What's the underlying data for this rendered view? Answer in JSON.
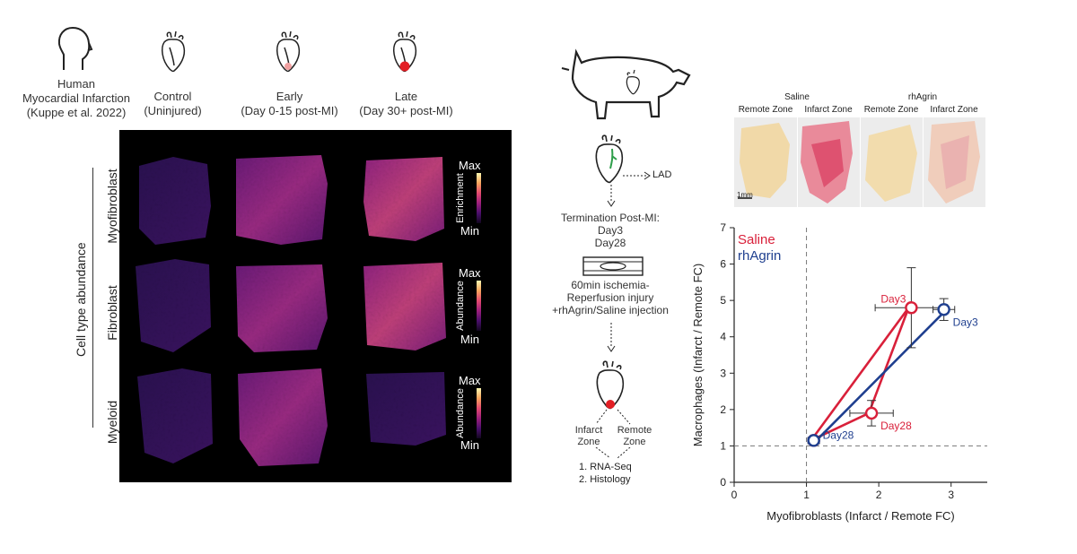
{
  "header": {
    "human": [
      "Human",
      "Myocardial Infarction",
      "(Kuppe et al. 2022)"
    ],
    "control": [
      "Control",
      "(Uninjured)"
    ],
    "early": [
      "Early",
      "(Day 0-15 post-MI)"
    ],
    "late": [
      "Late",
      "(Day 30+ post-MI)"
    ]
  },
  "left_panel": {
    "outer_label": "Cell type abundance",
    "rows": [
      {
        "label": "Myofibroblast",
        "scale_title": "Enrichment",
        "max": "Max",
        "min": "Min"
      },
      {
        "label": "Fibroblast",
        "scale_title": "Abundance",
        "max": "Max",
        "min": "Min"
      },
      {
        "label": "Myeloid",
        "scale_title": "Abundance",
        "max": "Max",
        "min": "Min"
      }
    ]
  },
  "pig_workflow": {
    "lad": "LAD",
    "termination": [
      "Termination Post-MI:",
      "Day3",
      "Day28"
    ],
    "injury": [
      "60min ischemia-",
      "Reperfusion injury",
      "+rhAgrin/Saline injection"
    ],
    "infarct_zone": [
      "Infarct",
      "Zone"
    ],
    "remote_zone": [
      "Remote",
      "Zone"
    ],
    "steps": [
      "1. RNA-Seq",
      "2. Histology"
    ]
  },
  "histology": {
    "group_saline": "Saline",
    "group_rhagrin": "rhAgrin",
    "captions": [
      "Remote Zone",
      "Infarct Zone",
      "Remote Zone",
      "Infarct Zone"
    ],
    "scale_bar": "1mm"
  },
  "chart_data": {
    "type": "scatter",
    "xlabel": "Myofibroblasts (Infarct / Remote FC)",
    "ylabel": "Macrophages (Infarct / Remote FC)",
    "xlim": [
      0,
      3.5
    ],
    "ylim": [
      0,
      7
    ],
    "x_ticks": [
      "0",
      "1",
      "2",
      "3"
    ],
    "y_ticks": [
      "0",
      "1",
      "2",
      "3",
      "4",
      "5",
      "6",
      "7"
    ],
    "reference_lines": {
      "x": 1,
      "y": 1
    },
    "series": [
      {
        "name": "Saline",
        "color": "#d9203a",
        "points": [
          {
            "label": "",
            "x": 1.1,
            "y": 1.15,
            "xerr": 0,
            "yerr": 0
          },
          {
            "label": "Day3",
            "x": 2.45,
            "y": 4.8,
            "xerr": 0.5,
            "yerr": 1.1
          },
          {
            "label": "Day28",
            "x": 1.9,
            "y": 1.9,
            "xerr": 0.3,
            "yerr": 0.35
          }
        ]
      },
      {
        "name": "rhAgrin",
        "color": "#1f3f8f",
        "points": [
          {
            "label": "Day28",
            "x": 1.1,
            "y": 1.15,
            "xerr": 0.08,
            "yerr": 0.08
          },
          {
            "label": "Day3",
            "x": 2.9,
            "y": 4.75,
            "xerr": 0.15,
            "yerr": 0.3
          }
        ]
      }
    ]
  }
}
